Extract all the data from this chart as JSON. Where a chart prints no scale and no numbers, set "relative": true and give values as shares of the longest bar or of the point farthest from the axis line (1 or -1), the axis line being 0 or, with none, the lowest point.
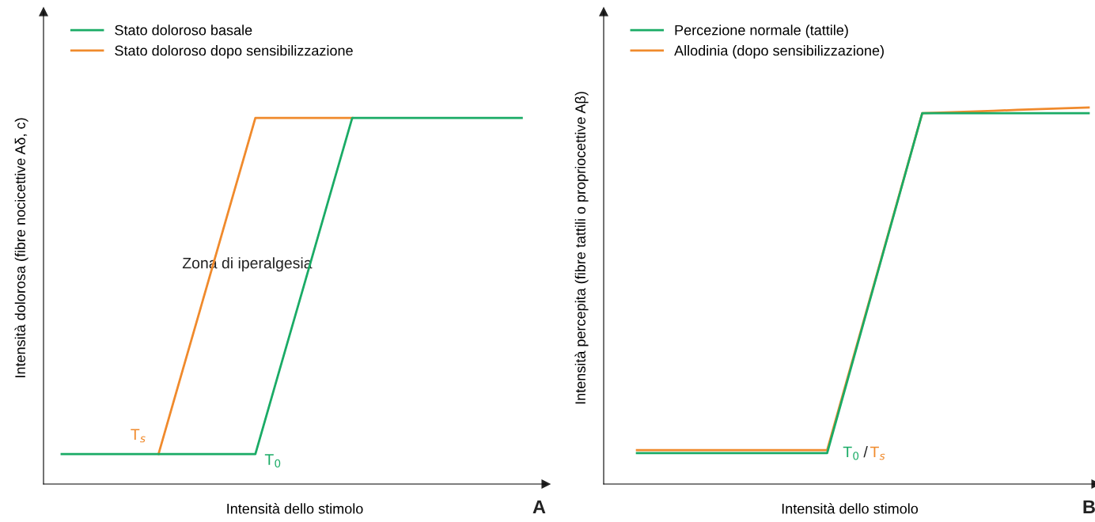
{
  "chart_data": [
    {
      "type": "line",
      "relative": true,
      "xlabel": "Intensità dello stimolo",
      "ylabel": "Intensità dolorosa (fibre nocicettive Aδ, c)",
      "legend": "top left",
      "categories": [
        null,
        null,
        null,
        null,
        null,
        null,
        null,
        null,
        null,
        null,
        null,
        null,
        null,
        null,
        null,
        null,
        null,
        null,
        null,
        null
      ],
      "series": [
        {
          "name": "Stato doloroso basale",
          "color": "#1aab66",
          "values": [
            0.082,
            0.082,
            0.082,
            0.082,
            0.082,
            0.082,
            0.082,
            0.082,
            0.082,
            0.312,
            0.541,
            0.771,
            1,
            1,
            1,
            1,
            1,
            1,
            1,
            1
          ]
        },
        {
          "name": "Stato doloroso dopo sensibilizzazione",
          "color": "#f08a2c",
          "values": [
            null,
            null,
            null,
            null,
            0.082,
            0.312,
            0.541,
            0.771,
            1,
            1,
            1,
            1,
            1,
            null,
            null,
            null,
            null,
            null,
            null,
            null
          ]
        }
      ],
      "annotations": [
        "T$_{s}$",
        "T$_{0}$",
        "Zona di iperalgesia",
        "A"
      ]
    },
    {
      "type": "line",
      "relative": true,
      "xlabel": "Intensità dello stimolo",
      "ylabel": "Intensità percepita (fibre tattili o propriocettive Aβ)",
      "legend": "top left",
      "categories": [
        null,
        null,
        null,
        null,
        null,
        null,
        null,
        null,
        null,
        null,
        null,
        null,
        null,
        null,
        null,
        null,
        null,
        null,
        null,
        null
      ],
      "series": [
        {
          "name": "Percezione normale (tattile)",
          "color": "#1aab66",
          "values": [
            0.082,
            0.082,
            0.082,
            0.082,
            0.082,
            0.082,
            0.082,
            0.082,
            0.082,
            0.308,
            0.534,
            0.759,
            0.985,
            0.985,
            0.985,
            0.985,
            0.985,
            0.985,
            0.985,
            0.985
          ]
        },
        {
          "name": "Allodinia (dopo sensibilizzazione)",
          "color": "#f08a2c",
          "values": [
            0.09,
            0.09,
            0.09,
            0.09,
            0.09,
            0.09,
            0.09,
            0.09,
            0.09,
            0.314,
            0.537,
            0.761,
            0.985,
            0.987,
            0.989,
            0.991,
            0.994,
            0.996,
            0.998,
            1
          ]
        }
      ],
      "annotations": [
        "T$_{0}$",
        "/",
        "T$_{s}$",
        "B"
      ]
    }
  ]
}
